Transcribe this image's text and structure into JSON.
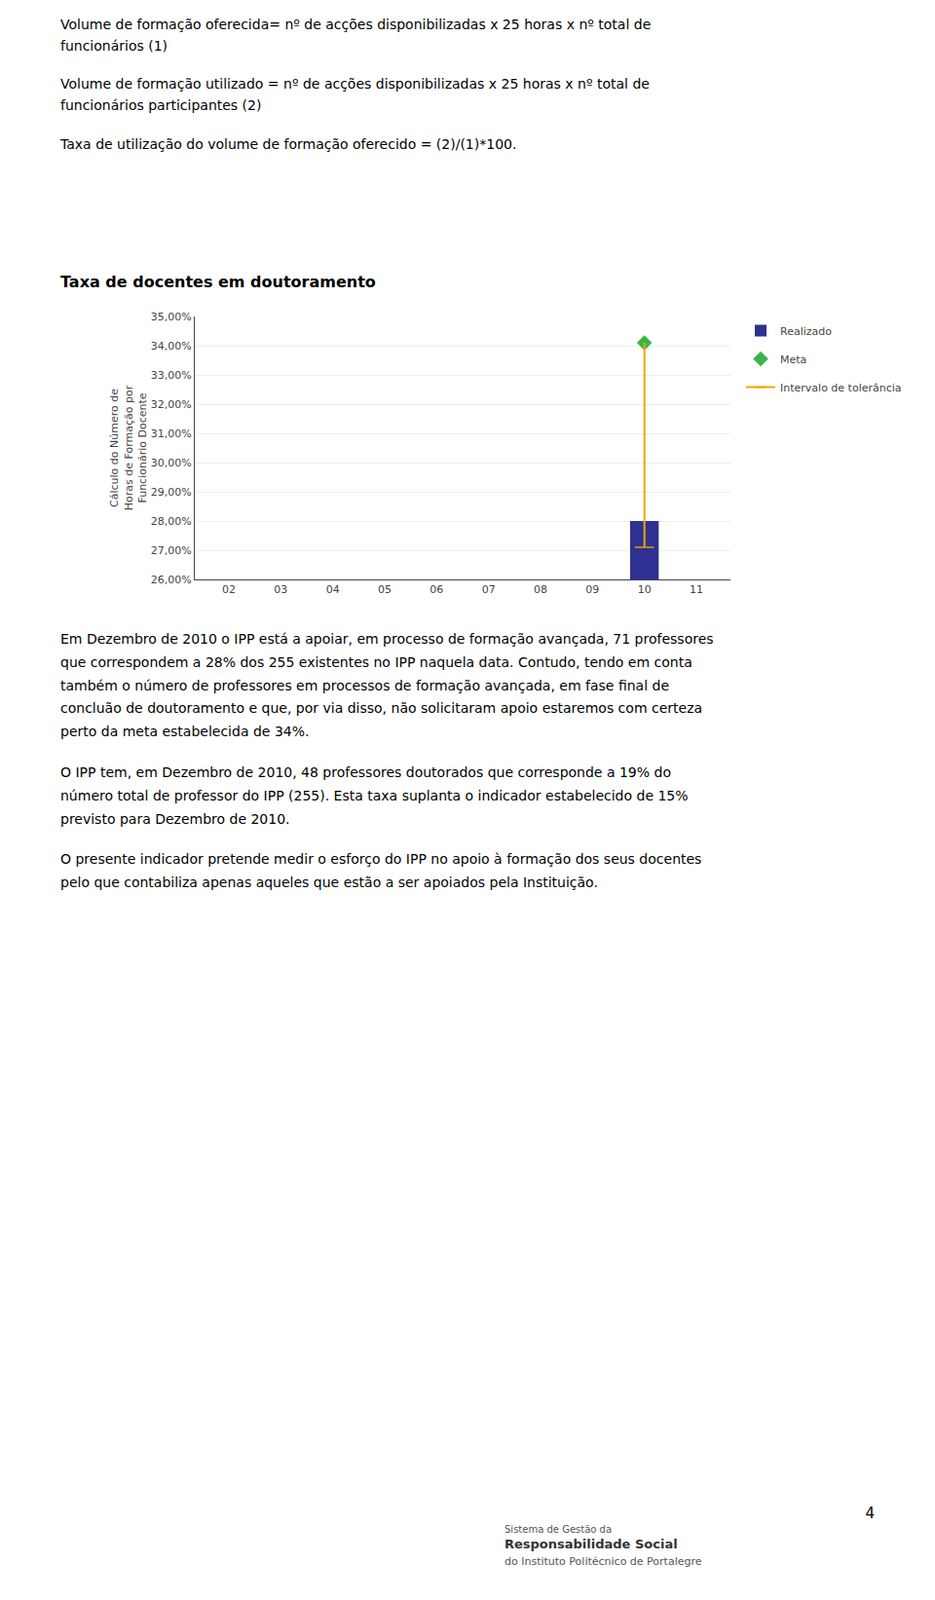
{
  "chart_data": {
    "type": "bar",
    "title": "Taxa de docentes em doutoramento",
    "ylabel": "Cálculo do Número de\nHoras de Formação por\nFuncionário Docente",
    "categories": [
      "02",
      "03",
      "04",
      "05",
      "06",
      "07",
      "08",
      "09",
      "10",
      "11"
    ],
    "series": [
      {
        "name": "Realizado",
        "type": "bar",
        "color": "#2e3192",
        "values": [
          null,
          null,
          null,
          null,
          null,
          null,
          null,
          null,
          0.28,
          null
        ]
      },
      {
        "name": "Meta",
        "type": "scatter",
        "marker": "diamond",
        "color": "#39b54a",
        "values": [
          null,
          null,
          null,
          null,
          null,
          null,
          null,
          null,
          0.341,
          null
        ]
      },
      {
        "name": "Intervalo de tolerância",
        "type": "range",
        "color": "#f0a500",
        "low": [
          null,
          null,
          null,
          null,
          null,
          null,
          null,
          null,
          0.271,
          null
        ],
        "high": [
          null,
          null,
          null,
          null,
          null,
          null,
          null,
          null,
          0.341,
          null
        ]
      }
    ],
    "ylim": [
      0.26,
      0.35
    ],
    "yticks": [
      {
        "value": 0.26,
        "label": "26,00%"
      },
      {
        "value": 0.27,
        "label": "27,00%"
      },
      {
        "value": 0.28,
        "label": "28,00%"
      },
      {
        "value": 0.29,
        "label": "29,00%"
      },
      {
        "value": 0.3,
        "label": "30,00%"
      },
      {
        "value": 0.31,
        "label": "31,00%"
      },
      {
        "value": 0.32,
        "label": "32,00%"
      },
      {
        "value": 0.33,
        "label": "33,00%"
      },
      {
        "value": 0.34,
        "label": "34,00%"
      },
      {
        "value": 0.35,
        "label": "35,00%"
      }
    ],
    "grid": true,
    "legend": "right"
  },
  "text_above": [
    "Volume de formação oferecida= nº de acções disponibilizadas x 25 horas x nº total de\nfuncionários (1)",
    "Volume de formação utilizado = nº de acções disponibilizadas x 25 horas x nº total de\nfuncionários participantes (2)",
    "Taxa de utilização do volume de formação oferecido = (2)/(1)*100."
  ],
  "text_below": [
    "Em Dezembro de 2010 o IPP está a apoiar, em processo de formação avançada, 71 professores\nque correspondem a 28% dos 255 existentes no IPP naquela data. Contudo, tendo em conta\ntambém o número de professores em processos de formação avançada, em fase final de\nconcluão de doutoramento e que, por via disso, não solicitaram apoio estaremos com certeza\nperto da meta estabelecida de 34%.",
    "O IPP tem, em Dezembro de 2010, 48 professores doutorados que corresponde a 19% do\nnúmero total de professor do IPP (255). Esta taxa suplanta o indicador estabelecido de 15%\nprevisto para Dezembro de 2010.",
    "O presente indicador pretende medir o esforço do IPP no apoio à formação dos seus docentes\npelo que contabiliza apenas aqueles que estão a ser apoiados pela Instituição."
  ],
  "page_number": "4",
  "footer": [
    "Sistema de Gestão da",
    "Responsabilidade Social",
    "do Instituto Politécnico de Portalegre"
  ]
}
